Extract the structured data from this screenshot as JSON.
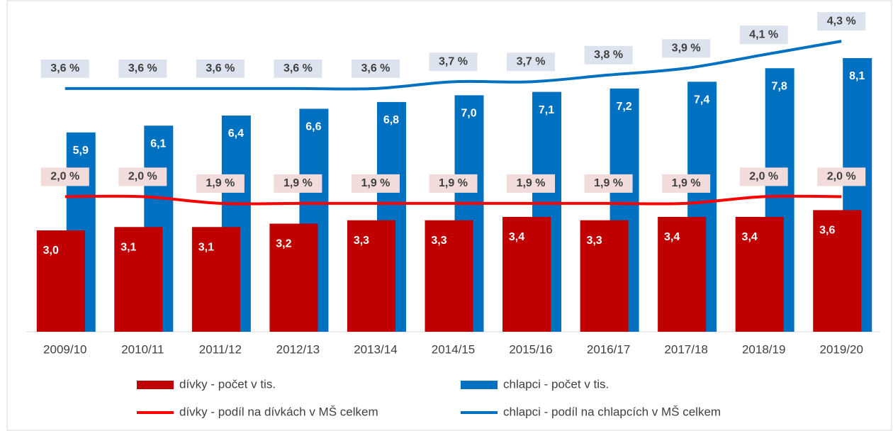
{
  "chart_data": {
    "type": "bar",
    "categories": [
      "2009/10",
      "2010/11",
      "2011/12",
      "2012/13",
      "2013/14",
      "2014/15",
      "2015/16",
      "2016/17",
      "2017/18",
      "2018/19",
      "2019/20"
    ],
    "series": [
      {
        "name": "dívky - počet v tis.",
        "type": "bar",
        "color": "#c00000",
        "values": [
          3.0,
          3.1,
          3.1,
          3.2,
          3.3,
          3.3,
          3.4,
          3.3,
          3.4,
          3.4,
          3.6
        ],
        "value_labels": [
          "3,0",
          "3,1",
          "3,1",
          "3,2",
          "3,3",
          "3,3",
          "3,4",
          "3,3",
          "3,4",
          "3,4",
          "3,6"
        ]
      },
      {
        "name": "chlapci - počet v tis.",
        "type": "bar",
        "color": "#0070c0",
        "values": [
          5.9,
          6.1,
          6.4,
          6.6,
          6.8,
          7.0,
          7.1,
          7.2,
          7.4,
          7.8,
          8.1
        ],
        "value_labels": [
          "5,9",
          "6,1",
          "6,4",
          "6,6",
          "6,8",
          "7,0",
          "7,1",
          "7,2",
          "7,4",
          "7,8",
          "8,1"
        ]
      },
      {
        "name": "dívky - podíl na dívkách v MŠ celkem",
        "type": "line",
        "axis": "y2",
        "color": "#ff0000",
        "label_color": "#f2dcdb",
        "values": [
          2.0,
          2.0,
          1.9,
          1.9,
          1.9,
          1.9,
          1.9,
          1.9,
          1.9,
          2.0,
          2.0
        ],
        "value_labels": [
          "2,0 %",
          "2,0 %",
          "1,9 %",
          "1,9 %",
          "1,9 %",
          "1,9 %",
          "1,9 %",
          "1,9 %",
          "1,9 %",
          "2,0 %",
          "2,0 %"
        ]
      },
      {
        "name": "chlapci - podíl na chlapcích v MŠ celkem",
        "type": "line",
        "axis": "y2",
        "color": "#0070c0",
        "label_color": "#dce3ee",
        "values": [
          3.6,
          3.6,
          3.6,
          3.6,
          3.6,
          3.7,
          3.7,
          3.8,
          3.9,
          4.1,
          4.3
        ],
        "value_labels": [
          "3,6 %",
          "3,6 %",
          "3,6 %",
          "3,6 %",
          "3,6 %",
          "3,7 %",
          "3,7 %",
          "3,8 %",
          "3,9 %",
          "4,1 %",
          "4,3 %"
        ]
      }
    ],
    "ylim": [
      0,
      9.4
    ],
    "y2lim": [
      0,
      4.7
    ],
    "legend": "bottom"
  }
}
